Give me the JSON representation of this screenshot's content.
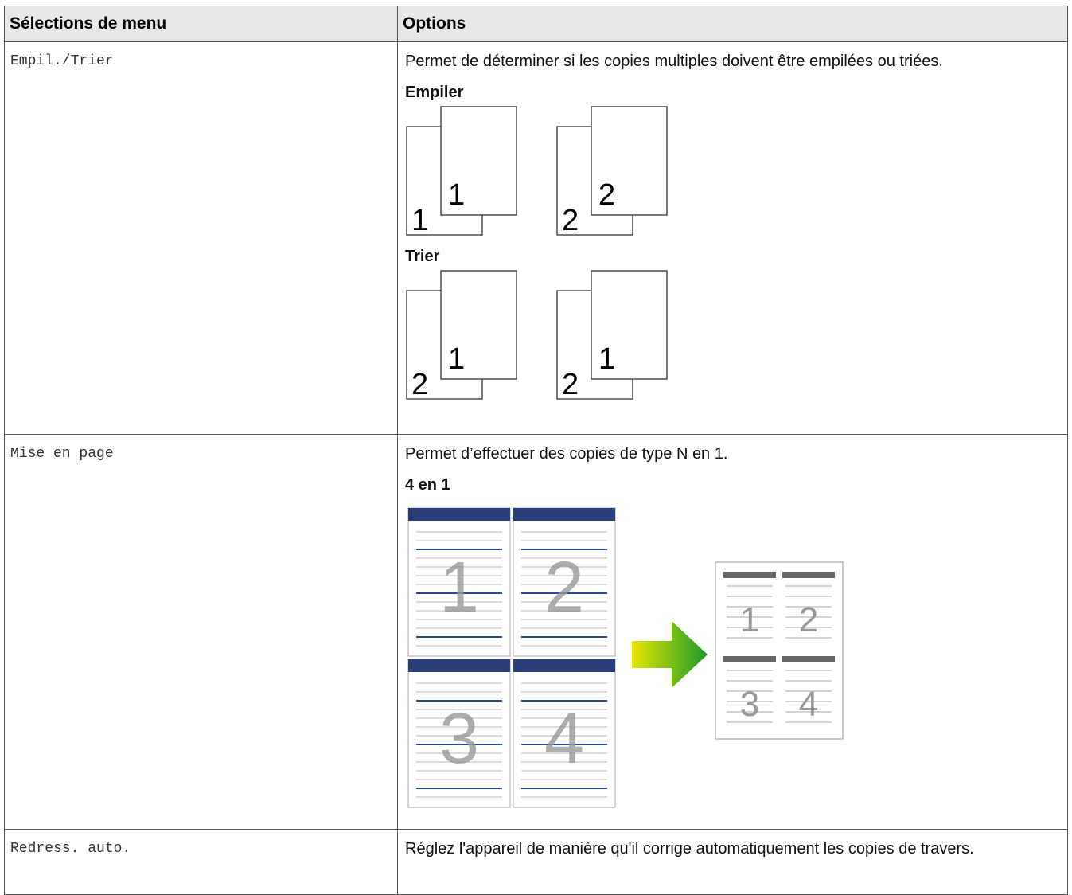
{
  "table": {
    "header": [
      "Sélections de menu",
      "Options"
    ],
    "rows": [
      {
        "menu": "Empil./Trier",
        "description": "Permet de déterminer si les copies multiples doivent être empilées ou triées.",
        "figures": [
          {
            "label": "Empiler",
            "stacks": [
              [
                "1",
                "1"
              ],
              [
                "2",
                "2"
              ]
            ]
          },
          {
            "label": "Trier",
            "stacks": [
              [
                "2",
                "1"
              ],
              [
                "2",
                "1"
              ]
            ]
          }
        ]
      },
      {
        "menu": "Mise en page",
        "description": "Permet d’effectuer des copies de type N en 1.",
        "figures": [
          {
            "label": "4 en 1",
            "pages": [
              "1",
              "2",
              "3",
              "4"
            ]
          }
        ]
      },
      {
        "menu": "Redress. auto.",
        "description": "Réglez l'appareil de manière qu'il corrige automatiquement les copies de travers."
      }
    ]
  }
}
